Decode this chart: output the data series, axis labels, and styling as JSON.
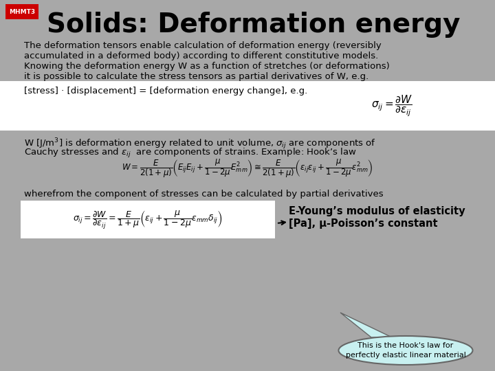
{
  "bg_color": "#a8a8a8",
  "title_text": "Solids: Deformation energy",
  "mhmt3_bg": "#cc0000",
  "mhmt3_text": "MHMT3",
  "para1_line1": "The deformation tensors enable calculation of deformation energy (reversibly",
  "para1_line2": "accumulated in a deformed body) according to different constitutive models.",
  "para1_line3": "Knowing the deformation energy W as a function of stretches (or deformations)",
  "para1_line4": "it is possible to calculate the stress tensors as partial derivatives of W, e.g.",
  "para2_text": "[stress] · [displacement] = [deformation energy change], e.g.",
  "formula1": "$\\sigma_{ij} = \\dfrac{\\partial W}{\\partial \\varepsilon_{ij}}$",
  "para3_line1": "W [J/m$^3$] is deformation energy related to unit volume, $\\sigma_{ij}$ are components of",
  "para3_line2": "Cauchy stresses and $\\varepsilon_{ij}$  are components of strains. Example: Hook’s law",
  "formula2": "$W = \\dfrac{E}{2(1+\\mu)}\\left(E_{ij}E_{ij} + \\dfrac{\\mu}{1-2\\mu}E_{mm}^2\\right) \\cong \\dfrac{E}{2(1+\\mu)}\\left(\\varepsilon_{ij}\\varepsilon_{ij} + \\dfrac{\\mu}{1-2\\mu}\\varepsilon_{mm}^2\\right)$",
  "para4": "wherefrom the component of stresses can be calculated by partial derivatives",
  "formula3": "$\\sigma_{ij} = \\dfrac{\\partial W}{\\partial \\varepsilon_{ij}} = \\dfrac{E}{1+\\mu}\\left(\\varepsilon_{ij} + \\dfrac{\\mu}{1-2\\mu}\\varepsilon_{mm}\\delta_{ij}\\right)$",
  "side_text_line1": "E-Young’s modulus of elasticity",
  "side_text_line2": "[Pa], μ-Poisson’s constant",
  "bubble_text": "This is the Hook's law for\nperfectly elastic linear material",
  "bubble_bg": "#c8f0f0",
  "section2_bg": "#ffffff",
  "formula3_bg": "#ffffff",
  "text_color": "#000000",
  "title_fontsize": 28,
  "body_fontsize": 9.5,
  "formula1_fontsize": 11,
  "formula2_fontsize": 8.5,
  "formula3_fontsize": 9,
  "side_fontsize": 10.5,
  "bubble_fontsize": 8
}
